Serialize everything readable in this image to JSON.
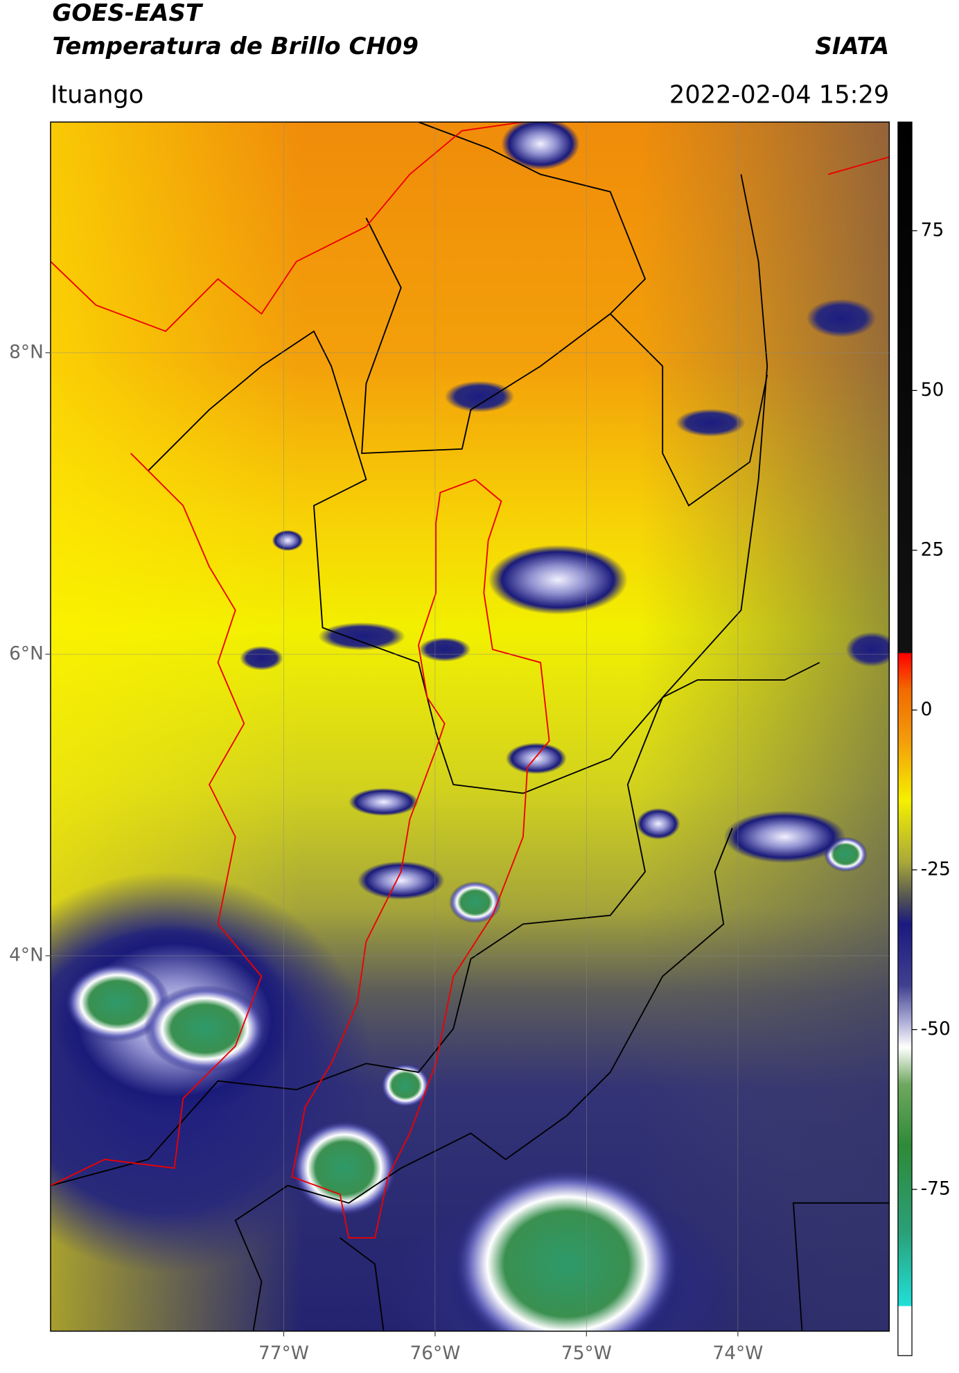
{
  "header": {
    "title": "GOES-EAST",
    "subtitle": "Temperatura de Brillo CH09",
    "brand": "SIATA",
    "location": "Ituango",
    "datetime": "2022-02-04 15:29"
  },
  "chart_data": {
    "type": "map",
    "xlim": [
      -78.54,
      -73.0
    ],
    "ylim": [
      1.51,
      9.53
    ],
    "xticks": [
      {
        "value": -77,
        "label": "77°W"
      },
      {
        "value": -76,
        "label": "76°W"
      },
      {
        "value": -75,
        "label": "75°W"
      },
      {
        "value": -74,
        "label": "74°W"
      }
    ],
    "yticks": [
      {
        "value": 4,
        "label": "4°N"
      },
      {
        "value": 6,
        "label": "6°N"
      },
      {
        "value": 8,
        "label": "8°N"
      }
    ],
    "grid": true,
    "colorbar": {
      "lim": [
        -101,
        92
      ],
      "ticks": [
        -75,
        -50,
        -25,
        0,
        25,
        50,
        75
      ]
    }
  }
}
